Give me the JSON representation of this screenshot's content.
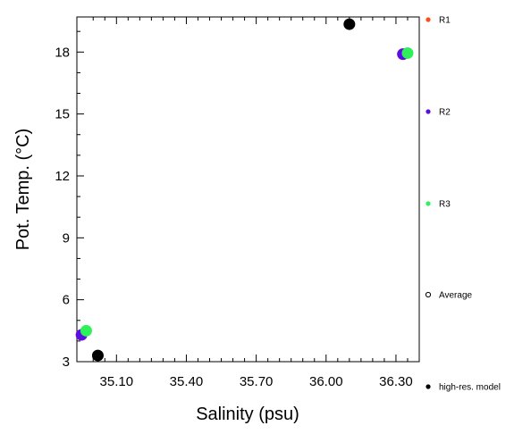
{
  "chart_data": {
    "type": "scatter",
    "xlabel": "Salinity (psu)",
    "ylabel": "Pot. Temp. (°C)",
    "xlim": [
      34.93,
      36.4
    ],
    "ylim": [
      3,
      19.7
    ],
    "x_ticks": [
      35.1,
      35.4,
      35.7,
      36.0,
      36.3
    ],
    "x_tick_labels": [
      "35.10",
      "35.40",
      "35.70",
      "36.00",
      "36.30"
    ],
    "y_ticks": [
      3,
      6,
      9,
      12,
      15,
      18
    ],
    "y_tick_labels": [
      "3",
      "6",
      "9",
      "12",
      "15",
      "18"
    ],
    "grid": false,
    "legend_position": "right",
    "series": [
      {
        "name": "R1",
        "color": "#ff4a1a",
        "marker": "filled-circle",
        "x": [
          34.95,
          36.33
        ],
        "y": [
          4.3,
          17.9
        ]
      },
      {
        "name": "R2",
        "color": "#5a0ee6",
        "marker": "filled-circle",
        "x": [
          34.95,
          36.33
        ],
        "y": [
          4.3,
          17.9
        ]
      },
      {
        "name": "R3",
        "color": "#2ef05a",
        "marker": "filled-circle",
        "x": [
          34.97,
          36.35
        ],
        "y": [
          4.5,
          17.95
        ]
      },
      {
        "name": "Average",
        "color": "#000000",
        "marker": "open-circle",
        "x": [],
        "y": []
      },
      {
        "name": "high-res. model",
        "color": "#000000",
        "marker": "filled-circle",
        "x": [
          35.02,
          36.1
        ],
        "y": [
          3.3,
          19.35
        ]
      }
    ]
  }
}
